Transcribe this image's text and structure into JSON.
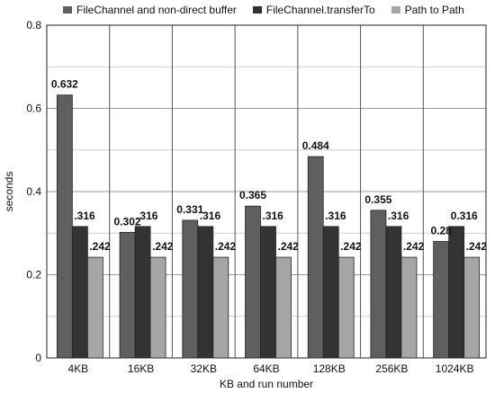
{
  "chart_data": {
    "type": "bar",
    "categories": [
      "4KB",
      "16KB",
      "32KB",
      "64KB",
      "128KB",
      "256KB",
      "1024KB"
    ],
    "series": [
      {
        "name": "FileChannel and non-direct buffer",
        "color": "#5f5f5f",
        "values": [
          0.632,
          0.302,
          0.331,
          0.365,
          0.484,
          0.355,
          0.28
        ],
        "labels": [
          "0.632",
          "0.302",
          "0.331",
          "0.365",
          "0.484",
          "0.355",
          "0.28"
        ]
      },
      {
        "name": "FileChannel.transferTo",
        "color": "#333333",
        "values": [
          0.316,
          0.316,
          0.316,
          0.316,
          0.316,
          0.316,
          0.316
        ],
        "labels": [
          ".316",
          ".316",
          ".316",
          ".316",
          ".316",
          ".316",
          "0.316"
        ]
      },
      {
        "name": "Path to Path",
        "color": "#a6a6a6",
        "values": [
          0.242,
          0.242,
          0.242,
          0.242,
          0.242,
          0.242,
          0.242
        ],
        "labels": [
          ".242",
          ".242",
          ".242",
          ".242",
          ".242",
          ".242",
          ".242"
        ]
      }
    ],
    "xlabel": "KB and run number",
    "ylabel": "seconds",
    "ylim": [
      0,
      0.8
    ],
    "yticks": [
      "0",
      "0.2",
      "0.4",
      "0.6",
      "0.8"
    ],
    "grid": true,
    "legend_position": "top"
  }
}
